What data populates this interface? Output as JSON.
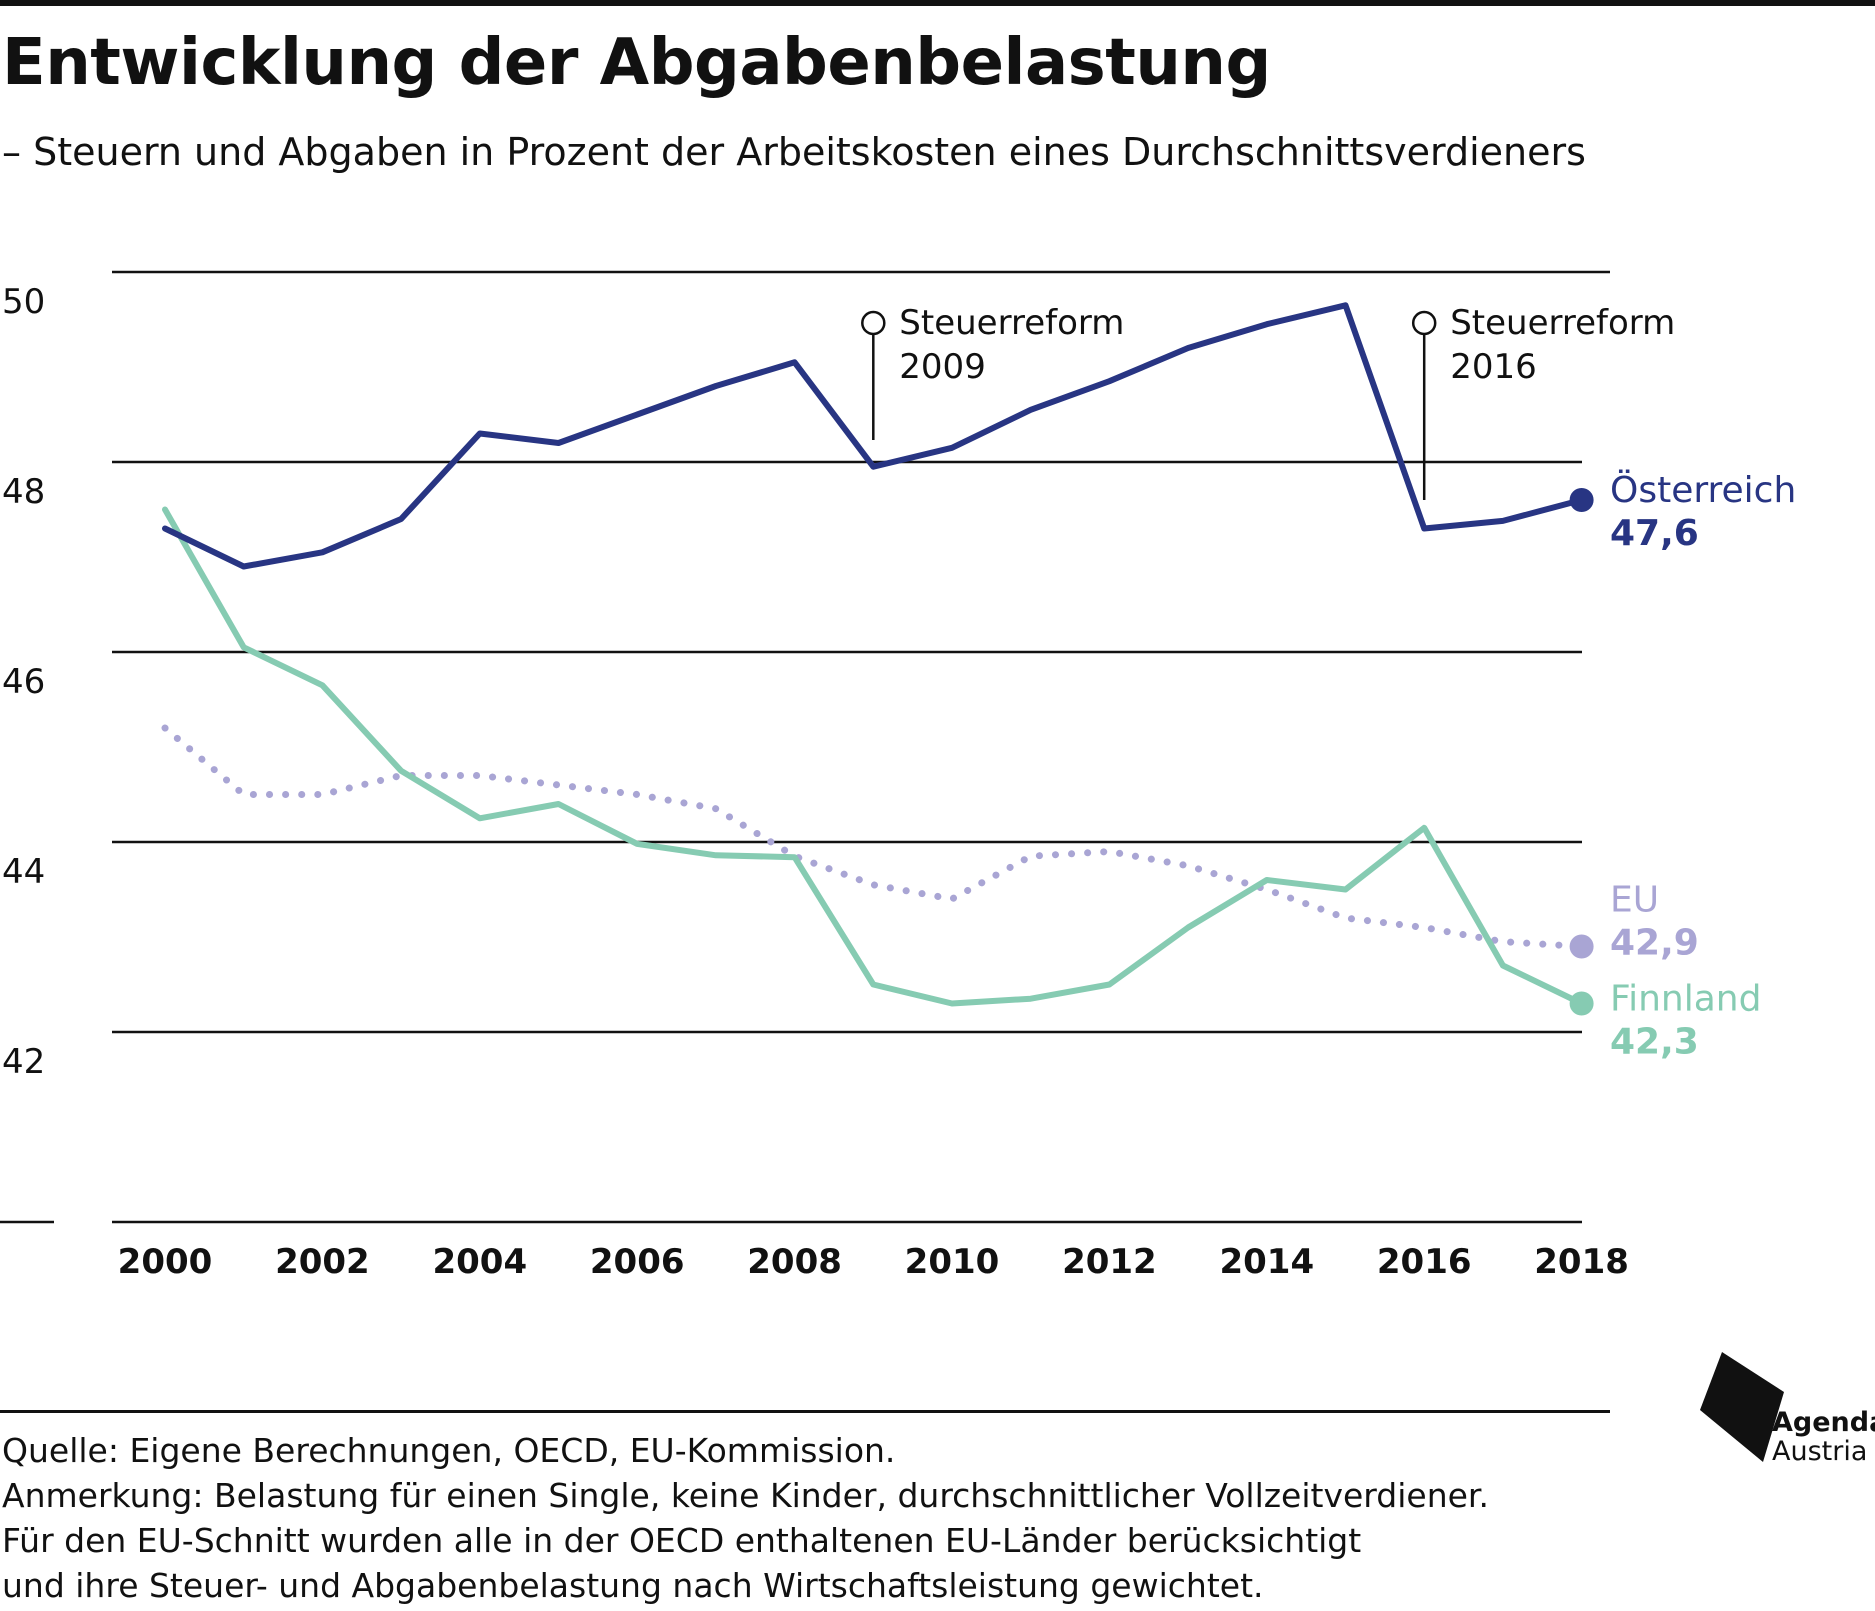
{
  "title": "Entwicklung der Abgabenbelastung",
  "subtitle": "– Steuern und Abgaben in Prozent der Arbeitskosten eines Durchschnittsverdieners",
  "chart_data": {
    "type": "line",
    "x": [
      2000,
      2001,
      2002,
      2003,
      2004,
      2005,
      2006,
      2007,
      2008,
      2009,
      2010,
      2011,
      2012,
      2013,
      2014,
      2015,
      2016,
      2017,
      2018
    ],
    "x_ticks": [
      "2000",
      "2002",
      "2004",
      "2006",
      "2008",
      "2010",
      "2012",
      "2014",
      "2016",
      "2018"
    ],
    "y_ticks": [
      "50",
      "48",
      "46",
      "44",
      "42"
    ],
    "ylim": [
      40,
      50
    ],
    "grid": true,
    "series": [
      {
        "name": "Österreich",
        "end_label": "47,6",
        "color": "#283583",
        "style": "solid",
        "values": [
          47.3,
          46.9,
          47.05,
          47.4,
          48.3,
          48.2,
          48.5,
          48.8,
          49.05,
          47.95,
          48.15,
          48.55,
          48.85,
          49.2,
          49.45,
          49.65,
          47.3,
          47.38,
          47.6
        ]
      },
      {
        "name": "EU",
        "end_label": "42,9",
        "color": "#a9a5d4",
        "style": "dotted",
        "values": [
          45.2,
          44.5,
          44.5,
          44.7,
          44.7,
          44.6,
          44.5,
          44.35,
          43.85,
          43.55,
          43.4,
          43.85,
          43.9,
          43.75,
          43.5,
          43.2,
          43.1,
          42.95,
          42.9
        ]
      },
      {
        "name": "Finnland",
        "end_label": "42,3",
        "color": "#86cbb2",
        "style": "solid",
        "values": [
          47.5,
          46.05,
          45.65,
          44.75,
          44.25,
          44.4,
          43.98,
          43.86,
          43.84,
          42.5,
          42.3,
          42.35,
          42.5,
          43.1,
          43.6,
          43.5,
          44.15,
          42.7,
          42.3
        ]
      }
    ],
    "annotations": [
      {
        "x": 2009,
        "text": [
          "Steuerreform",
          "2009"
        ]
      },
      {
        "x": 2016,
        "text": [
          "Steuerreform",
          "2016"
        ]
      }
    ]
  },
  "notes": {
    "source": "Quelle: Eigene Berechnungen, OECD, EU-Kommission.",
    "remark1": "Anmerkung: Belastung für einen Single, keine Kinder, durchschnittlicher Vollzeitverdiener.",
    "remark2": "Für den EU-Schnitt wurden alle in der OECD enthaltenen EU-Länder berücksichtigt",
    "remark3": "und ihre Steuer- und Abgabenbelastung nach Wirtschaftsleistung gewichtet."
  },
  "logo": {
    "line1": "Agenda",
    "line2": "Austria"
  }
}
